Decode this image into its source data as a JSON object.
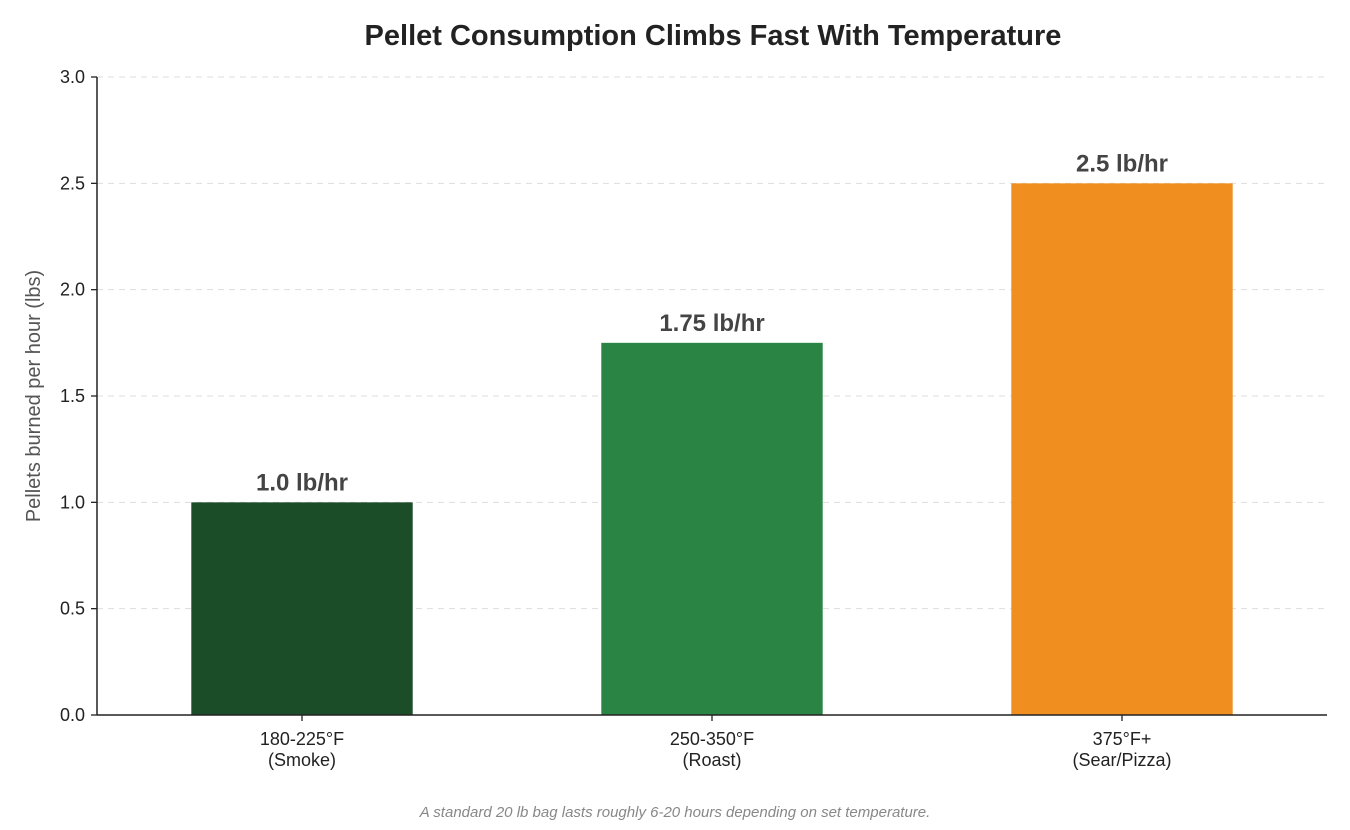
{
  "chart_data": {
    "type": "bar",
    "title": "Pellet Consumption Climbs Fast With Temperature",
    "xlabel": "",
    "ylabel": "Pellets burned per hour (lbs)",
    "ylim": [
      0,
      3.0
    ],
    "yticks": [
      "0.0",
      "0.5",
      "1.0",
      "1.5",
      "2.0",
      "2.5",
      "3.0"
    ],
    "grid": true,
    "categories": [
      [
        "180-225°F",
        "(Smoke)"
      ],
      [
        "250-350°F",
        "(Roast)"
      ],
      [
        "375°F+",
        "(Sear/Pizza)"
      ]
    ],
    "values": [
      1.0,
      1.75,
      2.5
    ],
    "data_labels": [
      "1.0 lb/hr",
      "1.75 lb/hr",
      "2.5 lb/hr"
    ],
    "colors": [
      "#1b4d29",
      "#2a8444",
      "#f08e20"
    ],
    "footnote": "A standard 20 lb bag lasts roughly 6-20 hours depending on set temperature."
  }
}
